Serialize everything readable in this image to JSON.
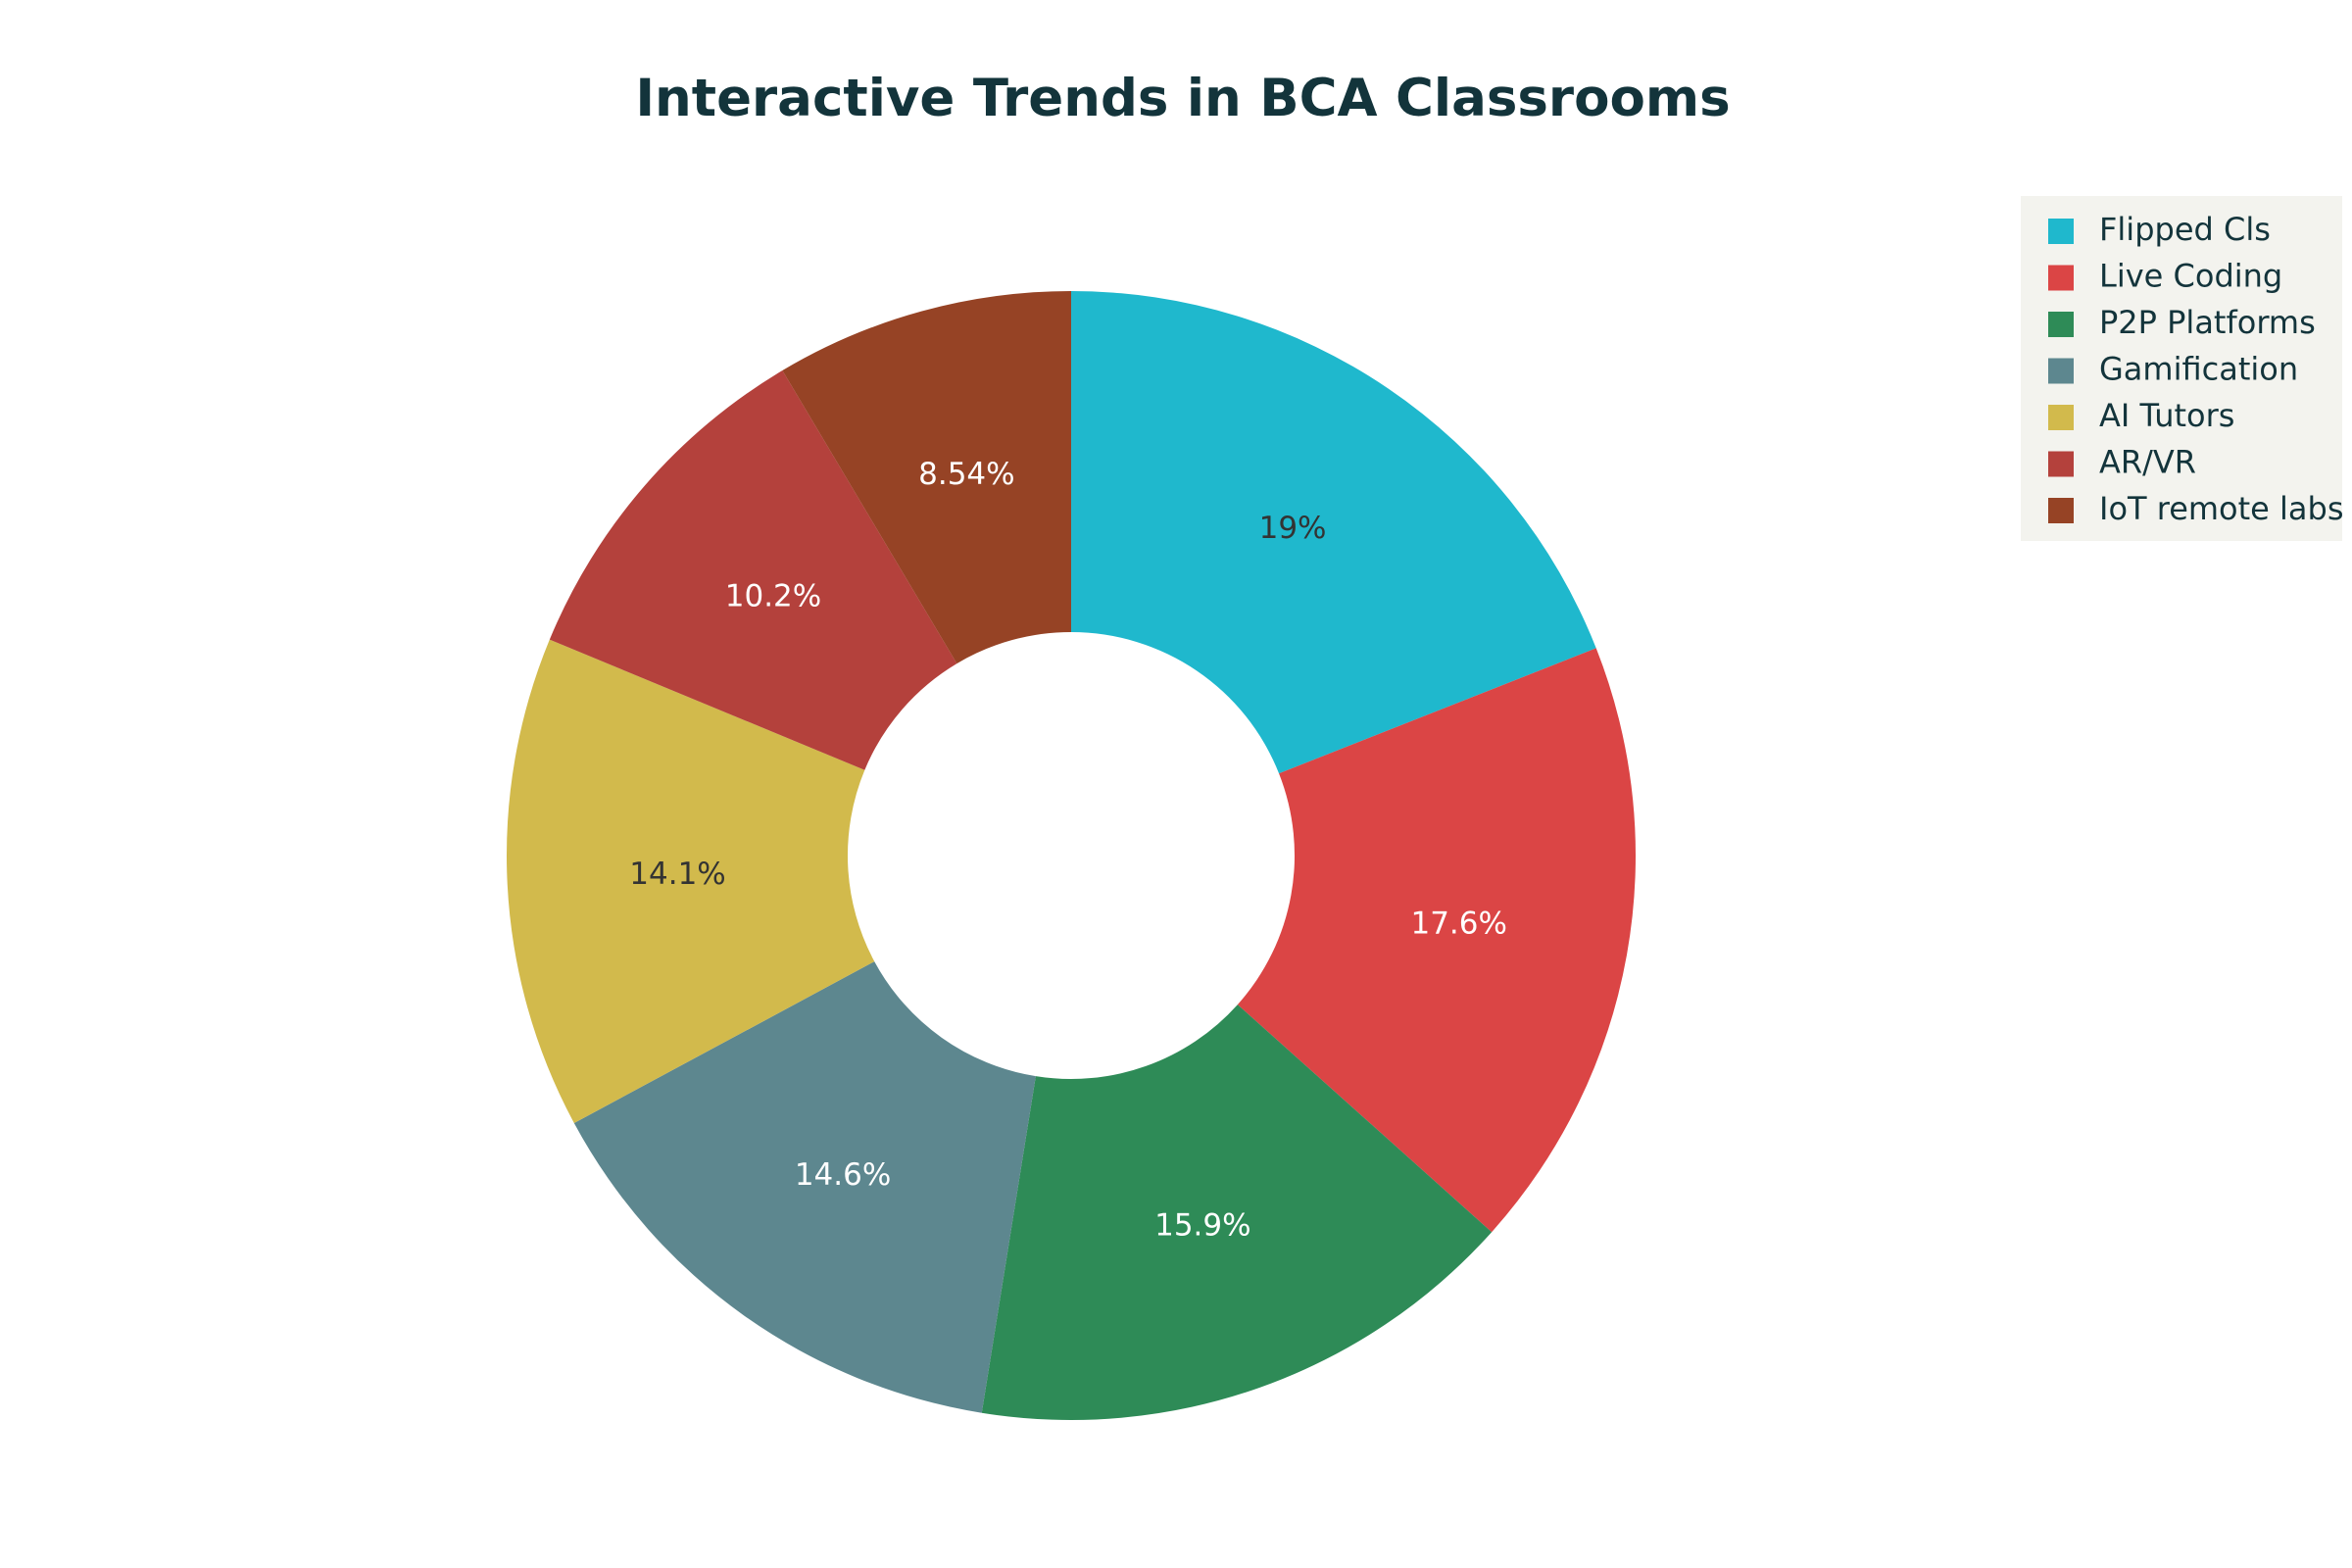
{
  "chart_data": {
    "type": "pie",
    "hole": true,
    "title": "Interactive Trends in BCA Classrooms",
    "legend_position": "top-right",
    "slices": [
      {
        "name": "Flipped Cls",
        "value": 19,
        "label": "19%",
        "color": "#1fb8cd",
        "label_color": "#333333"
      },
      {
        "name": "Live Coding",
        "value": 17.6,
        "label": "17.6%",
        "color": "#db4545",
        "label_color": "#ffffff"
      },
      {
        "name": "P2P Platforms",
        "value": 15.9,
        "label": "15.9%",
        "color": "#2e8b57",
        "label_color": "#ffffff"
      },
      {
        "name": "Gamification",
        "value": 14.6,
        "label": "14.6%",
        "color": "#5d878f",
        "label_color": "#ffffff"
      },
      {
        "name": "AI Tutors",
        "value": 14.1,
        "label": "14.1%",
        "color": "#d2ba4c",
        "label_color": "#333333"
      },
      {
        "name": "AR/VR",
        "value": 10.2,
        "label": "10.2%",
        "color": "#b4413c",
        "label_color": "#ffffff"
      },
      {
        "name": "IoT remote labs",
        "value": 8.54,
        "label": "8.54%",
        "color": "#964325",
        "label_color": "#ffffff"
      }
    ],
    "legend_background": "#f3f3ee",
    "title_color": "#13343b"
  }
}
